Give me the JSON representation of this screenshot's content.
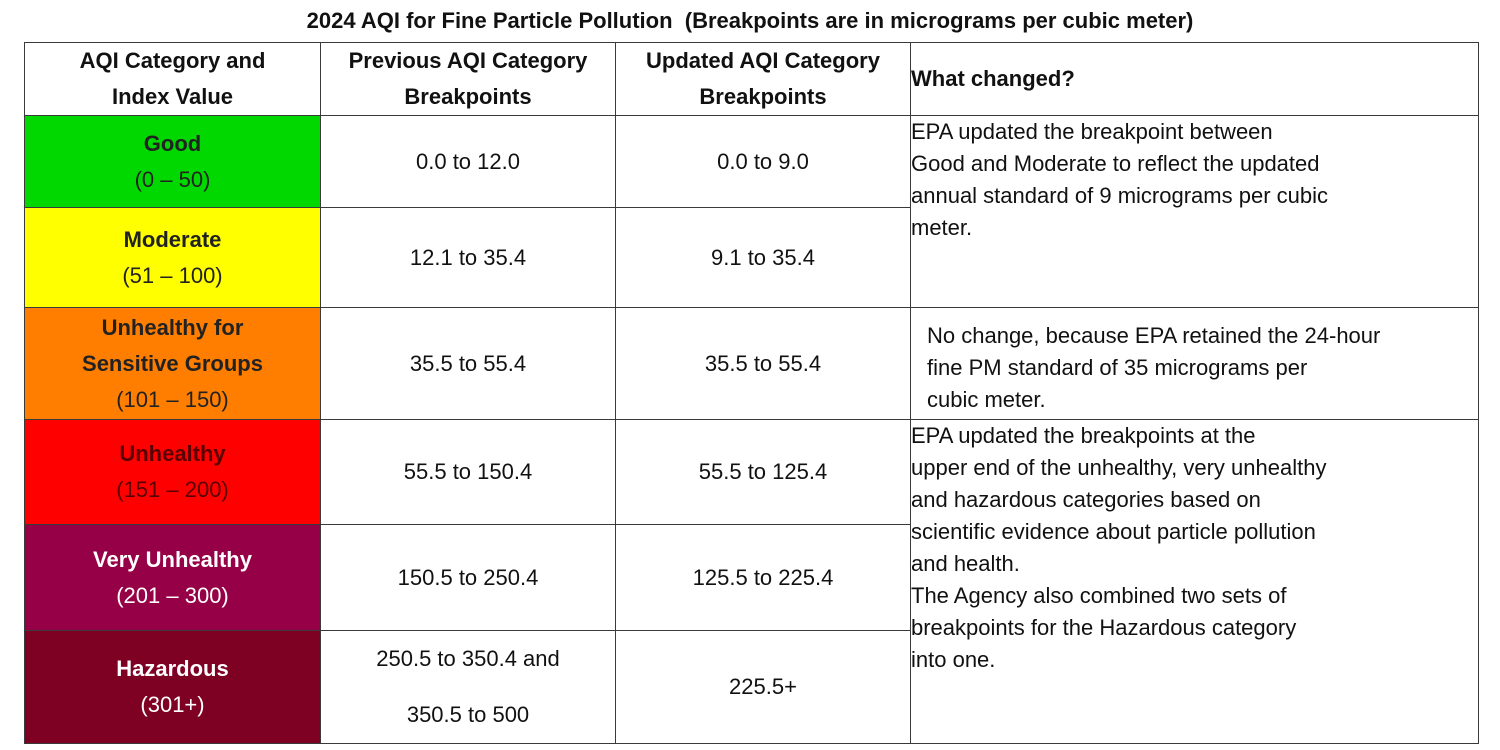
{
  "title": "2024 AQI for Fine Particle Pollution  (Breakpoints are in micrograms per cubic meter)",
  "headers": {
    "category": [
      "AQI Category and",
      "Index Value"
    ],
    "previous": [
      "Previous AQI Category",
      "Breakpoints"
    ],
    "updated": [
      "Updated AQI Category",
      "Breakpoints"
    ],
    "changed": "What changed?"
  },
  "rows": [
    {
      "name": "Good",
      "range": "(0 – 50)",
      "previous": "0.0 to 12.0",
      "updated": "0.0 to 9.0",
      "color": "#00d800"
    },
    {
      "name": "Moderate",
      "range": "(51 – 100)",
      "previous": "12.1 to 35.4",
      "updated": "9.1 to 35.4",
      "color": "#ffff00"
    },
    {
      "name1": "Unhealthy for",
      "name2": "Sensitive Groups",
      "range": "(101 – 150)",
      "previous": "35.5 to 55.4",
      "updated": "35.5 to 55.4",
      "color": "#ff7e00"
    },
    {
      "name": "Unhealthy",
      "range": "(151 – 200)",
      "previous": "55.5 to 150.4",
      "updated": "55.5 to 125.4",
      "color": "#ff0000"
    },
    {
      "name": "Very Unhealthy",
      "range": "(201 – 300)",
      "previous": "150.5 to 250.4",
      "updated": "125.5 to 225.4",
      "color": "#960046"
    },
    {
      "name": "Hazardous",
      "range": "(301+)",
      "previous1": "250.5 to 350.4 and",
      "previous2": "350.5 to 500",
      "updated": "225.5+",
      "color": "#7e0023"
    }
  ],
  "notes": {
    "good_moderate": [
      "EPA updated the breakpoint between",
      "Good and Moderate to reflect the updated",
      "annual standard of 9 micrograms per cubic",
      "meter."
    ],
    "usg": [
      "No change, because EPA retained the 24-hour",
      "fine PM standard of 35 micrograms per",
      "cubic meter."
    ],
    "upper": [
      "EPA updated the breakpoints at the",
      "upper end of the unhealthy, very unhealthy",
      "and hazardous categories based on",
      "scientific evidence about particle pollution",
      "and health."
    ],
    "agency": [
      "The Agency also combined two sets of",
      "breakpoints for the Hazardous category",
      "into one."
    ]
  }
}
